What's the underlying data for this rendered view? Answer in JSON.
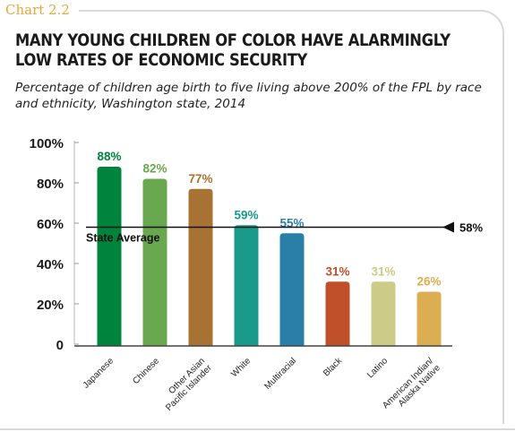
{
  "chart_label": "Chart 2.2",
  "title": "MANY YOUNG CHILDREN OF COLOR HAVE ALARMINGLY LOW RATES OF ECONOMIC SECURITY",
  "subtitle": "Percentage of children age birth to five living above 200% of the FPL by race and ethnicity, Washington state, 2014",
  "chart_data": {
    "type": "bar",
    "categories": [
      "Japanese",
      "Chinese",
      "Other Asian Pacific Islander",
      "White",
      "Multiracial",
      "Black",
      "Latino",
      "American Indian/ Alaska Native"
    ],
    "category_lines": [
      [
        "Japanese"
      ],
      [
        "Chinese"
      ],
      [
        "Other Asian",
        "Pacific Islander"
      ],
      [
        "White"
      ],
      [
        "Multiracial"
      ],
      [
        "Black"
      ],
      [
        "Latino"
      ],
      [
        "American Indian/",
        "Alaska Native"
      ]
    ],
    "values": [
      88,
      82,
      77,
      59,
      55,
      31,
      31,
      26
    ],
    "data_labels": [
      "88%",
      "82%",
      "77%",
      "59%",
      "55%",
      "31%",
      "31%",
      "26%"
    ],
    "bar_colors": [
      "#00843d",
      "#6aa84f",
      "#a87232",
      "#1a9a8a",
      "#2a7fa8",
      "#c0502a",
      "#cccc88",
      "#dcae52"
    ],
    "y_ticks": [
      0,
      20,
      40,
      60,
      80,
      100
    ],
    "y_tick_labels": [
      "0",
      "20%",
      "40%",
      "60%",
      "80%",
      "100%"
    ],
    "ylim": [
      0,
      100
    ],
    "reference_line": {
      "value": 58,
      "label": "State Average",
      "value_label": "58%"
    },
    "grid": false
  }
}
